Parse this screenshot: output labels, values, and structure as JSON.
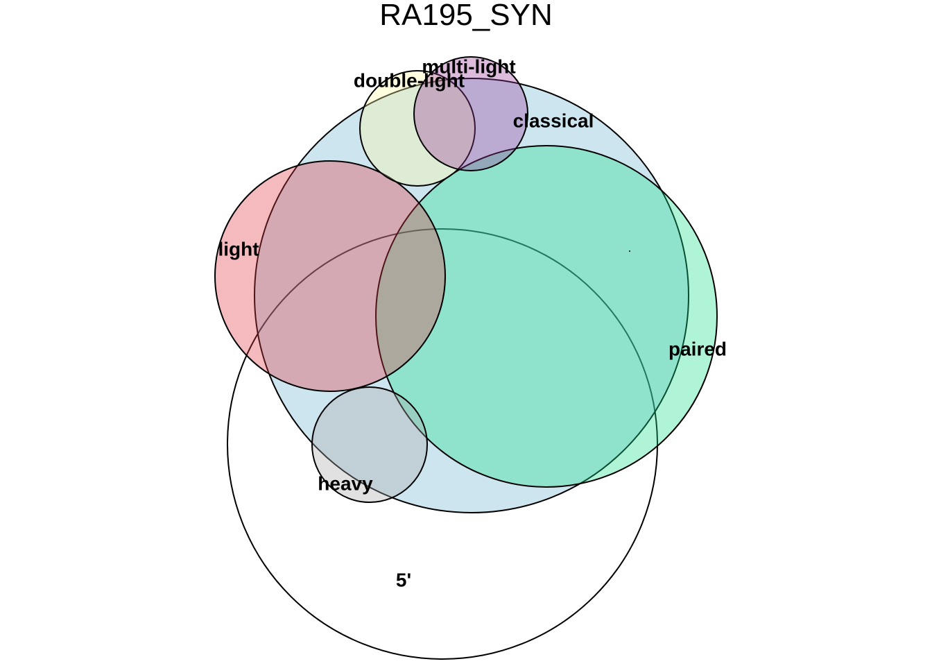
{
  "title": "RA195_SYN",
  "sets": [
    {
      "id": "5prime",
      "label": "5'",
      "fill": "#ffffff",
      "opacity": 0.0
    },
    {
      "id": "classical",
      "label": "classical",
      "fill": "#6fb5d2",
      "opacity": 0.35
    },
    {
      "id": "paired",
      "label": "paired",
      "fill": "#1ee08e",
      "opacity": 0.35
    },
    {
      "id": "light",
      "label": "light",
      "fill": "#e23a44",
      "opacity": 0.35
    },
    {
      "id": "heavy",
      "label": "heavy",
      "fill": "#a8a8a8",
      "opacity": 0.35
    },
    {
      "id": "double-light",
      "label": "double-light",
      "fill": "#fff8a6",
      "opacity": 0.35
    },
    {
      "id": "multi-light",
      "label": "multi-light",
      "fill": "#9c3d9a",
      "opacity": 0.35
    }
  ]
}
